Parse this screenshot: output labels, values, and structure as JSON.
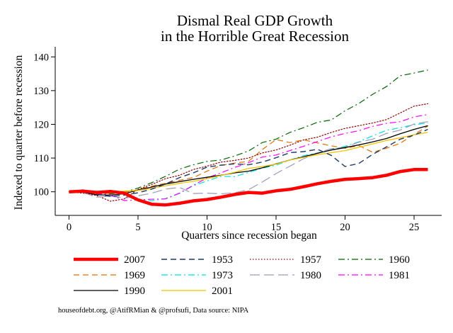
{
  "chart_data": {
    "type": "line",
    "title": [
      "Dismal Real GDP Growth",
      "in the Horrible Great Recession"
    ],
    "xlabel": "Quarters since recession began",
    "ylabel": "Indexed to quarter before recession",
    "xlim": [
      -1,
      27
    ],
    "ylim": [
      93,
      143
    ],
    "xticks": [
      0,
      5,
      10,
      15,
      20,
      25
    ],
    "yticks": [
      100,
      110,
      120,
      130,
      140
    ],
    "x": [
      0,
      1,
      2,
      3,
      4,
      5,
      6,
      7,
      8,
      9,
      10,
      11,
      12,
      13,
      14,
      15,
      16,
      17,
      18,
      19,
      20,
      21,
      22,
      23,
      24,
      25,
      26
    ],
    "series": [
      {
        "name": "2007",
        "color": "#ff0000",
        "style": "solid",
        "width": 4.5,
        "values": [
          100,
          100.2,
          99.8,
          100.1,
          99.6,
          97.6,
          96.3,
          96.1,
          96.6,
          97.3,
          97.7,
          98.4,
          99.2,
          99.8,
          99.6,
          100.3,
          100.7,
          101.5,
          102.4,
          103.1,
          103.7,
          103.9,
          104.2,
          104.9,
          106.0,
          106.6,
          106.6
        ]
      },
      {
        "name": "1953",
        "color": "#1f3864",
        "style": "dash",
        "width": 1.4,
        "values": [
          100,
          100.5,
          99.3,
          98.6,
          99.0,
          99.7,
          100.8,
          102.3,
          104.2,
          105.6,
          107.3,
          107.9,
          108.3,
          108.0,
          108.8,
          110.1,
          111.6,
          111.9,
          112.6,
          110.8,
          107.5,
          108.4,
          111.1,
          113.3,
          115.6,
          116.8,
          118.5
        ]
      },
      {
        "name": "1957",
        "color": "#8b0000",
        "style": "dot",
        "width": 1.2,
        "values": [
          100,
          99.6,
          98.9,
          97.2,
          97.9,
          100.7,
          102.2,
          103.9,
          104.9,
          106.6,
          107.6,
          108.8,
          109.3,
          110.0,
          111.5,
          112.4,
          113.8,
          115.4,
          116.2,
          117.6,
          118.8,
          119.6,
          120.4,
          121.4,
          123.4,
          125.4,
          126.1
        ]
      },
      {
        "name": "1960",
        "color": "#006400",
        "style": "dashdot",
        "width": 1.2,
        "values": [
          100,
          100.6,
          99.6,
          99.4,
          99.8,
          101.1,
          102.7,
          104.6,
          106.7,
          108.0,
          109.0,
          109.4,
          110.6,
          112.1,
          114.6,
          115.6,
          117.6,
          119.0,
          120.6,
          121.3,
          124.0,
          126.2,
          128.9,
          131.2,
          134.4,
          135.2,
          136.1
        ]
      },
      {
        "name": "1969",
        "color": "#e07000",
        "style": "dash",
        "width": 1.2,
        "values": [
          100,
          99.9,
          99.3,
          99.6,
          99.8,
          100.6,
          101.7,
          102.5,
          103.4,
          104.2,
          106.1,
          107.8,
          108.5,
          109.0,
          112.5,
          115.5,
          114.6,
          115.4,
          114.5,
          113.6,
          112.9,
          113.7,
          111.7,
          112.9,
          114.4,
          117.0,
          119.5
        ]
      },
      {
        "name": "1973",
        "color": "#00e0e0",
        "style": "dashdot",
        "width": 1.2,
        "values": [
          100,
          100.3,
          99.4,
          99.8,
          99.2,
          97.9,
          97.3,
          98.0,
          99.5,
          101.8,
          103.2,
          104.6,
          104.5,
          105.7,
          107.0,
          107.9,
          109.4,
          110.7,
          111.5,
          112.4,
          113.5,
          114.8,
          116.6,
          118.2,
          119.0,
          119.9,
          120.4
        ]
      },
      {
        "name": "1980",
        "color": "#9a9ab8",
        "style": "longdash",
        "width": 1.2,
        "values": [
          100,
          99.8,
          98.4,
          98.7,
          98.1,
          98.8,
          99.6,
          100.8,
          101.3,
          99.5,
          99.6,
          99.4,
          99.7,
          100.6,
          102.9,
          105.4,
          107.6,
          109.8,
          111.5,
          112.8,
          113.2,
          114.7,
          115.6,
          117.3,
          118.3,
          120.1,
          120.8
        ]
      },
      {
        "name": "1981",
        "color": "#ff00ff",
        "style": "dashdot",
        "width": 1.2,
        "values": [
          100,
          100.5,
          99.4,
          99.1,
          97.4,
          97.6,
          97.8,
          97.9,
          99.6,
          101.9,
          104.1,
          105.6,
          107.2,
          108.6,
          110.3,
          110.9,
          112.2,
          113.5,
          114.9,
          116.3,
          117.3,
          118.1,
          119.4,
          120.3,
          120.8,
          122.2,
          122.9
        ]
      },
      {
        "name": "1990",
        "color": "#000000",
        "style": "solid",
        "width": 1.3,
        "values": [
          100,
          99.9,
          99.1,
          99.0,
          99.4,
          100.5,
          101.4,
          102.3,
          103.0,
          103.7,
          104.3,
          104.9,
          105.6,
          106.1,
          107.1,
          108.3,
          109.4,
          110.4,
          111.4,
          112.4,
          113.1,
          113.9,
          114.8,
          115.8,
          117.2,
          118.5,
          119.6
        ]
      },
      {
        "name": "2001",
        "color": "#f2c200",
        "style": "solid",
        "width": 1.3,
        "values": [
          100,
          100.2,
          99.8,
          99.9,
          100.2,
          100.4,
          101.0,
          101.8,
          102.5,
          103.1,
          103.9,
          104.8,
          105.8,
          106.9,
          107.5,
          108.2,
          109.4,
          110.2,
          111.0,
          111.6,
          112.2,
          113.2,
          114.2,
          115.2,
          116.0,
          116.9,
          117.6
        ]
      }
    ],
    "legend_position": "bottom",
    "grid": false
  },
  "source_note": "houseofdebt.org, @AtifRMian & @profsufi, Data source: NIPA"
}
